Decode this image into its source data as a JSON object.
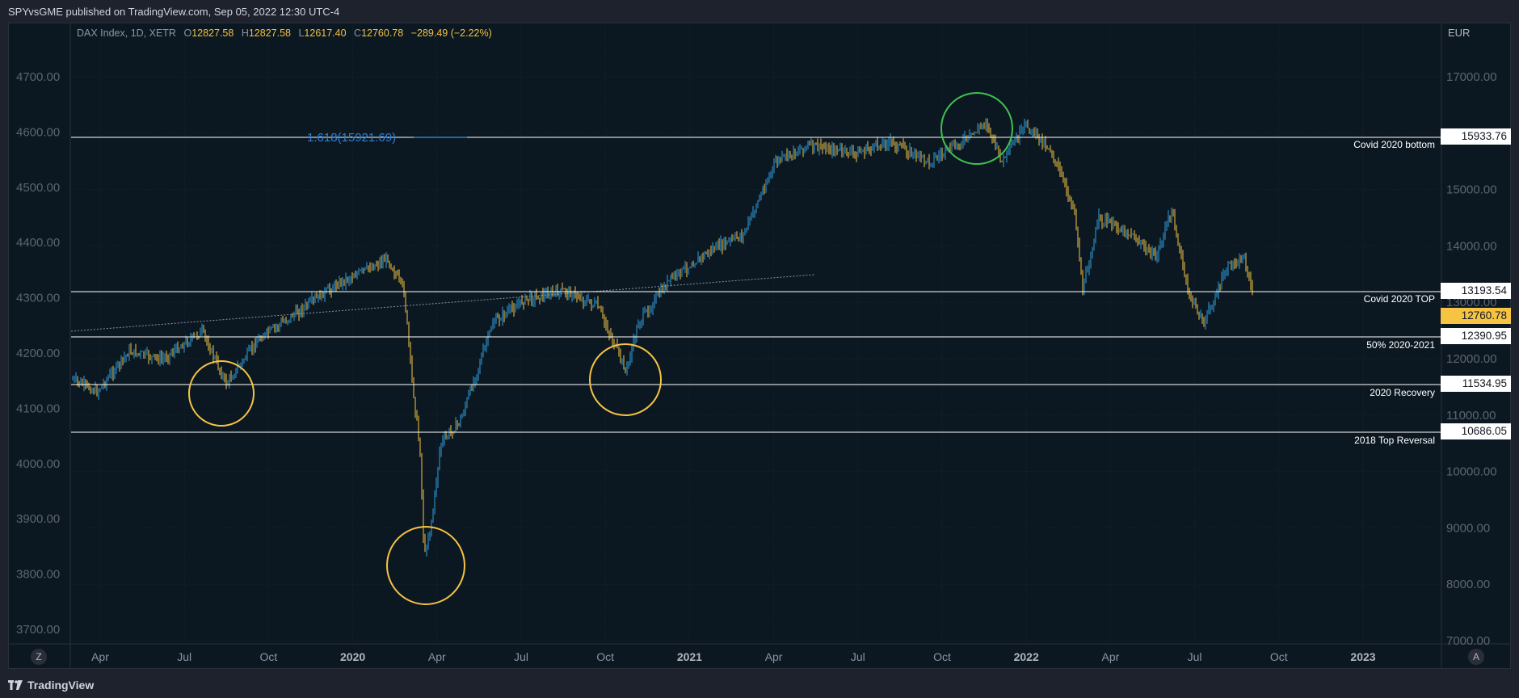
{
  "header": {
    "publish_line": "SPYvsGME published on TradingView.com, Sep 05, 2022 12:30 UTC-4"
  },
  "legend": {
    "symbol": "DAX Index, 1D, XETR",
    "o_label": "O",
    "o_value": "12827.58",
    "h_label": "H",
    "h_value": "12827.58",
    "l_label": "L",
    "l_value": "12617.40",
    "c_label": "C",
    "c_value": "12760.78",
    "change": "−289.49 (−2.22%)"
  },
  "currency": "EUR",
  "left_axis": [
    "4700.00",
    "4600.00",
    "4500.00",
    "4400.00",
    "4300.00",
    "4200.00",
    "4100.00",
    "4000.00",
    "3900.00",
    "3800.00",
    "3700.00"
  ],
  "right_axis": [
    "17000.00",
    "16000.00",
    "15000.00",
    "14000.00",
    "13000.00",
    "12000.00",
    "11000.00",
    "10000.00",
    "9000.00",
    "8000.00",
    "7000.00"
  ],
  "time_axis": [
    "Apr",
    "Jul",
    "Oct",
    "2020",
    "Apr",
    "Jul",
    "Oct",
    "2021",
    "Apr",
    "Jul",
    "Oct",
    "2022",
    "Apr",
    "Jul",
    "Oct",
    "2023"
  ],
  "fib_label": "1.618(15921.69)",
  "levels": [
    {
      "label": "Covid 2020 bottom",
      "price": "15933.76"
    },
    {
      "label": "Covid 2020 TOP",
      "price": "13193.54"
    },
    {
      "label": "50% 2020-2021",
      "price": "12390.95"
    },
    {
      "label": "2020 Recovery",
      "price": "11534.95"
    },
    {
      "label": "2018 Top Reversal",
      "price": "10686.05"
    }
  ],
  "last_price": "12760.78",
  "axis_buttons": {
    "left": "Z",
    "right": "A"
  },
  "footer": {
    "brand": "TradingView"
  },
  "colors": {
    "background": "#0c1821",
    "up_candle": "#2f9ee0",
    "down_candle": "#f6c343",
    "level_line": "#ffffff",
    "circle_yellow": "#f6c343",
    "circle_green": "#3fbf4f",
    "fib_color": "#2f7fd0"
  }
}
